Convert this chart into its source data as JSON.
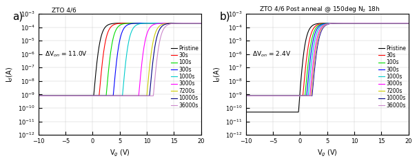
{
  "panel_a": {
    "title": "ZTO 4/6",
    "annotation": "ΔV$_{on}$ = 11.0V",
    "xlabel": "V$_g$ (V)",
    "ylabel": "I$_d$(A)",
    "xlim": [
      -10,
      20
    ],
    "ylim_log": [
      -12,
      -3
    ],
    "curves": [
      {
        "label": "Pristine",
        "color": "#000000",
        "vth": 0.2,
        "ss": 0.55,
        "ioff": 8e-10,
        "ion": 0.0002
      },
      {
        "label": "30s",
        "color": "#ff0000",
        "vth": 1.2,
        "ss": 0.55,
        "ioff": 8e-10,
        "ion": 0.0002
      },
      {
        "label": "100s",
        "color": "#00dd00",
        "vth": 2.5,
        "ss": 0.55,
        "ioff": 8e-10,
        "ion": 0.0002
      },
      {
        "label": "300s",
        "color": "#0000ff",
        "vth": 3.8,
        "ss": 0.55,
        "ioff": 8e-10,
        "ion": 0.0002
      },
      {
        "label": "1000s",
        "color": "#00cccc",
        "vth": 5.5,
        "ss": 0.55,
        "ioff": 8e-10,
        "ion": 0.0002
      },
      {
        "label": "3000s",
        "color": "#ff00ff",
        "vth": 8.5,
        "ss": 0.8,
        "ioff": 8e-10,
        "ion": 0.0002
      },
      {
        "label": "7200s",
        "color": "#cccc00",
        "vth": 10.0,
        "ss": 1.0,
        "ioff": 8e-10,
        "ion": 0.0002
      },
      {
        "label": "10000s",
        "color": "#000080",
        "vth": 10.5,
        "ss": 1.0,
        "ioff": 8e-10,
        "ion": 0.0002
      },
      {
        "label": "36000s",
        "color": "#cc88cc",
        "vth": 11.2,
        "ss": 1.2,
        "ioff": 8e-10,
        "ion": 0.0002
      }
    ]
  },
  "panel_b": {
    "title": "ZTO 4/6 Post anneal @ 150deg N$_2$ 18h",
    "annotation": "ΔV$_{on}$ = 2.4V",
    "xlabel": "V$_g$ (V)",
    "ylabel": "I$_d$(A)",
    "xlim": [
      -10,
      20
    ],
    "ylim_log": [
      -12,
      -3
    ],
    "curves": [
      {
        "label": "Pristine",
        "color": "#000000",
        "vth": -0.3,
        "ss": 0.35,
        "ioff": 5e-11,
        "ion": 0.0002
      },
      {
        "label": "30s",
        "color": "#ff0000",
        "vth": 0.5,
        "ss": 0.35,
        "ioff": 8e-10,
        "ion": 0.0002
      },
      {
        "label": "100s",
        "color": "#00dd00",
        "vth": 0.9,
        "ss": 0.35,
        "ioff": 8e-10,
        "ion": 0.0002
      },
      {
        "label": "300s",
        "color": "#0000ff",
        "vth": 1.2,
        "ss": 0.35,
        "ioff": 8e-10,
        "ion": 0.0002
      },
      {
        "label": "1000s",
        "color": "#00cccc",
        "vth": 1.5,
        "ss": 0.35,
        "ioff": 8e-10,
        "ion": 0.0002
      },
      {
        "label": "3000s",
        "color": "#ff00ff",
        "vth": 1.8,
        "ss": 0.35,
        "ioff": 8e-10,
        "ion": 0.0002
      },
      {
        "label": "7200s",
        "color": "#cccc00",
        "vth": 2.0,
        "ss": 0.35,
        "ioff": 8e-10,
        "ion": 0.0002
      },
      {
        "label": "10000s",
        "color": "#000080",
        "vth": 2.2,
        "ss": 0.35,
        "ioff": 8e-10,
        "ion": 0.0002
      },
      {
        "label": "36000s",
        "color": "#cc88cc",
        "vth": 2.1,
        "ss": 0.35,
        "ioff": 8e-10,
        "ion": 0.0002
      }
    ]
  },
  "bg_color": "#ffffff",
  "panel_label_fontsize": 11,
  "title_fontsize": 6.5,
  "tick_fontsize": 6,
  "legend_fontsize": 5.5,
  "axis_label_fontsize": 7
}
